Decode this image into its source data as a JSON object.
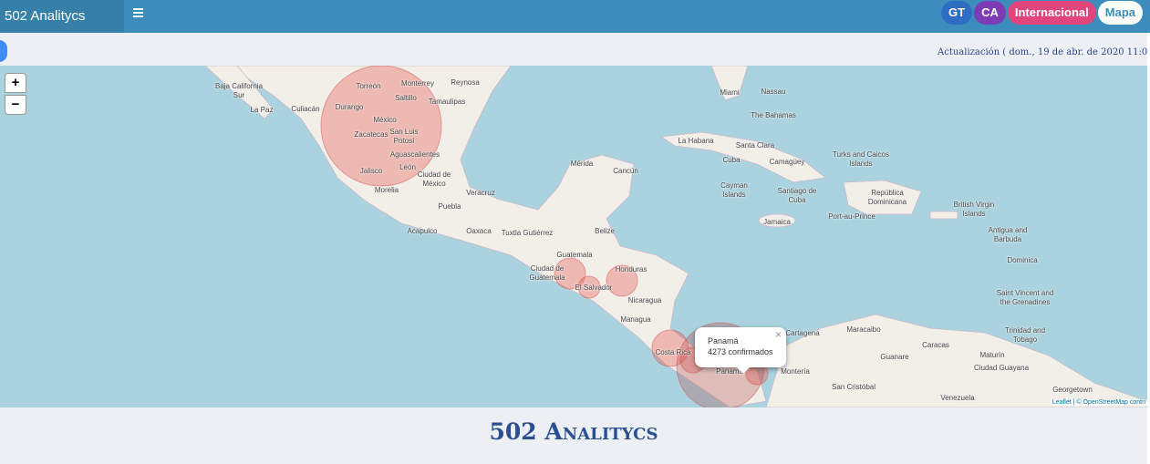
{
  "header": {
    "brand": "502 Analitycs",
    "buttons": [
      "GT",
      "CA",
      "Internacional",
      "Mapa"
    ]
  },
  "update_text": "Actualización ( dom., 19 de abr. de 2020 11:0",
  "map": {
    "zoom_in": "+",
    "zoom_out": "−",
    "labels": [
      "Baja California Sur",
      "La Paz",
      "Culiacán",
      "Torreón",
      "Monterrey",
      "Reynosa",
      "Saltillo",
      "Durango",
      "Tamaulipas",
      "México",
      "Zacatecas",
      "San Luis Potosí",
      "Aguascalientes",
      "León",
      "Jalisco",
      "Morelia",
      "Ciudad de México",
      "Veracruz",
      "Puebla",
      "Acapulco",
      "Oaxaca",
      "Tuxtla Gutiérrez",
      "Mérida",
      "Cancún",
      "Belize",
      "Guatemala",
      "Ciudad de Guatemala",
      "Honduras",
      "El Salvador",
      "Nicaragua",
      "Managua",
      "Costa Rica",
      "Panamá",
      "Miami",
      "Nassau",
      "The Bahamas",
      "La Habana",
      "Santa Clara",
      "Cuba",
      "Camagüey",
      "Turks and Caicos Islands",
      "Cayman Islands",
      "Santiago de Cuba",
      "República Dominicana",
      "Jamaica",
      "Port-au-Prince",
      "British Virgin Islands",
      "Antigua and Barbuda",
      "Dominica",
      "Saint Vincent and the Grenadines",
      "Trinidad and Tobago",
      "Cartagena",
      "Maracaibo",
      "Caracas",
      "Maturín",
      "Ciudad Guayana",
      "Guanare",
      "Montería",
      "San Cristóbal",
      "Venezuela",
      "Georgetown"
    ],
    "popup": {
      "title": "Panamá",
      "text": "4273 confirmados",
      "close": "×"
    },
    "attribution": "Leaflet | © OpenStreetMap contri"
  },
  "footer": {
    "title": "502 Analitycs"
  }
}
